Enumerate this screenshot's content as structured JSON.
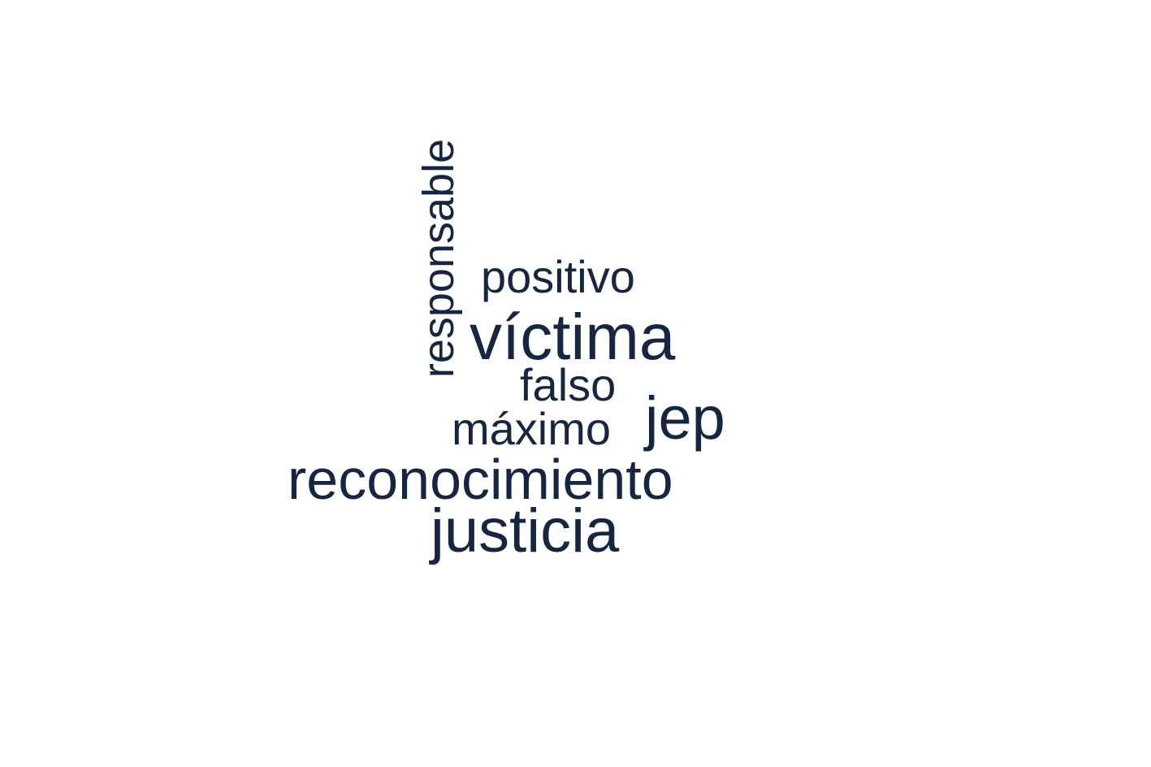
{
  "word_cloud": {
    "color": "#172640",
    "words": {
      "responsable": "responsable",
      "positivo": "positivo",
      "victima": "víctima",
      "falso": "falso",
      "maximo": "máximo",
      "jep": "jep",
      "reconocimiento": "reconocimiento",
      "justicia": "justicia"
    }
  }
}
